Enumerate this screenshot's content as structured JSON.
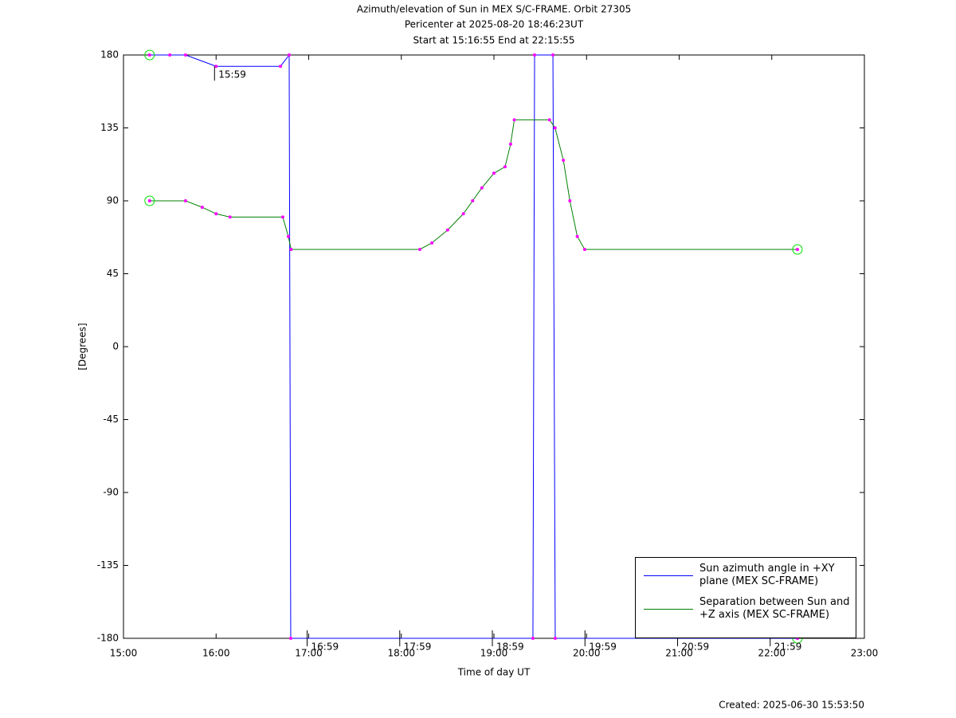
{
  "chart_data": {
    "type": "line",
    "title": "Azimuth/elevation of Sun in MEX S/C-FRAME.  Orbit 27305",
    "subtitle": [
      "Pericenter at 2025-08-20 18:46:23UT",
      "Start at 15:16:55 End at 22:15:55"
    ],
    "xlabel": "Time of day UT",
    "ylabel": "[Degrees]",
    "footer": "Created: 2025-06-30 15:53:50",
    "xlim": [
      15,
      23
    ],
    "xticks": [
      {
        "value": 15,
        "label": "15:00"
      },
      {
        "value": 16,
        "label": "16:00"
      },
      {
        "value": 17,
        "label": "17:00"
      },
      {
        "value": 18,
        "label": "18:00"
      },
      {
        "value": 19,
        "label": "19:00"
      },
      {
        "value": 20,
        "label": "20:00"
      },
      {
        "value": 21,
        "label": "21:00"
      },
      {
        "value": 22,
        "label": "22:00"
      },
      {
        "value": 23,
        "label": "23:00"
      }
    ],
    "ylim": [
      -180,
      180
    ],
    "yticks": [
      180,
      135,
      90,
      45,
      0,
      -45,
      -90,
      -135,
      -180
    ],
    "series": [
      {
        "name": "Sun azimuth angle in +XY plane (MEX SC-FRAME)",
        "color": "#0000ff",
        "x": [
          15.282,
          15.5,
          15.67,
          16.0,
          16.695,
          16.789,
          16.806,
          19.421,
          19.439,
          19.637,
          19.662,
          22.277
        ],
        "values": [
          180,
          180,
          180,
          173,
          173,
          180,
          -180,
          -180,
          180,
          180,
          -180,
          -180
        ]
      },
      {
        "name": "Separation between Sun and +Z axis (MEX SC-FRAME)",
        "color": "#008000",
        "x": [
          15.282,
          15.67,
          15.85,
          16.0,
          16.15,
          16.72,
          16.78,
          16.81,
          18.2,
          18.33,
          18.5,
          18.67,
          18.77,
          18.87,
          19.0,
          19.12,
          19.18,
          19.22,
          19.6,
          19.66,
          19.75,
          19.82,
          19.9,
          19.98,
          22.277
        ],
        "values": [
          90,
          90,
          86,
          82,
          80,
          80,
          68,
          60,
          60,
          64,
          72,
          82,
          90,
          98,
          107,
          111,
          125,
          140,
          140,
          135,
          115,
          90,
          68,
          60,
          60
        ]
      }
    ],
    "annotations": [
      {
        "text": "15:59",
        "x": 15.983,
        "y": 173
      },
      {
        "text": "16:59",
        "x": 16.983,
        "y": -180
      },
      {
        "text": "17:59",
        "x": 17.983,
        "y": -180
      },
      {
        "text": "18:59",
        "x": 18.983,
        "y": -180
      },
      {
        "text": "19:59",
        "x": 19.983,
        "y": -180
      },
      {
        "text": "20:59",
        "x": 20.983,
        "y": -180
      },
      {
        "text": "21:59",
        "x": 21.983,
        "y": -180
      }
    ]
  }
}
